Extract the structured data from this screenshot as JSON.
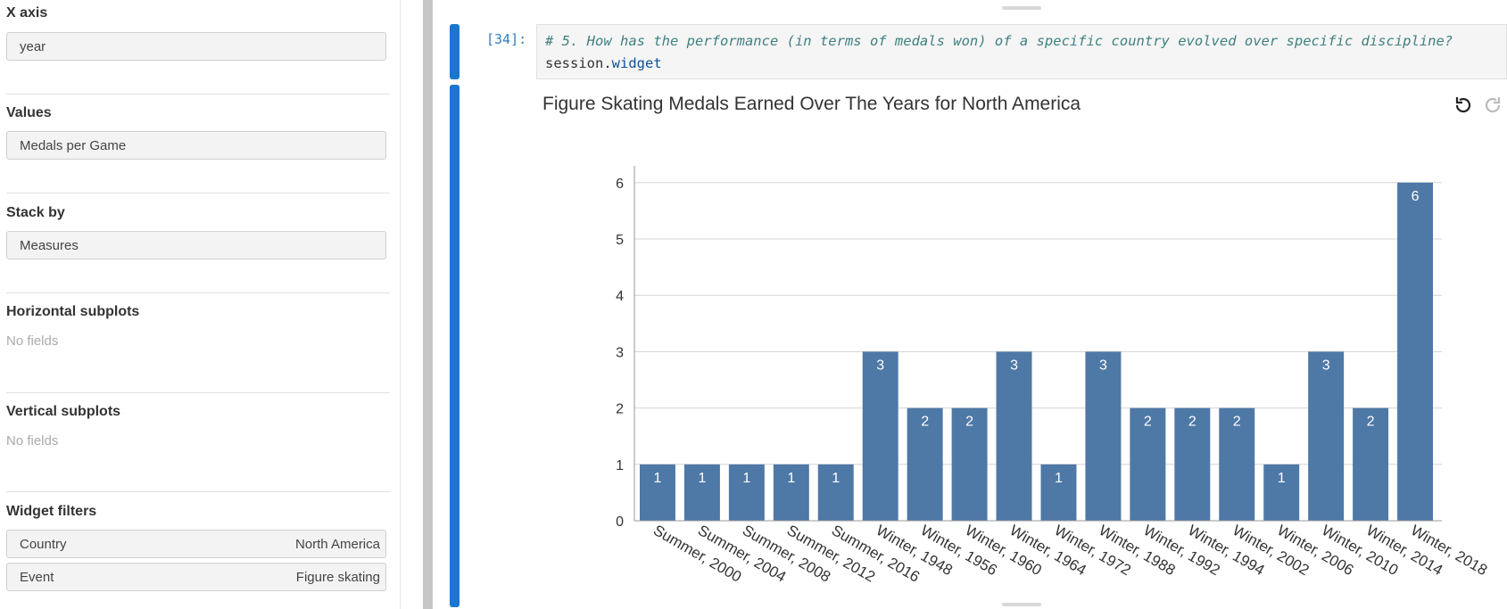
{
  "left_panel": {
    "x_axis": {
      "label": "X axis",
      "value": "year"
    },
    "values": {
      "label": "Values",
      "value": "Medals per Game"
    },
    "stack_by": {
      "label": "Stack by",
      "value": "Measures"
    },
    "horizontal_subplots": {
      "label": "Horizontal subplots",
      "empty": "No fields"
    },
    "vertical_subplots": {
      "label": "Vertical subplots",
      "empty": "No fields"
    },
    "widget_filters": {
      "label": "Widget filters",
      "filters": [
        {
          "name": "Country",
          "value": "North America"
        },
        {
          "name": "Event",
          "value": "Figure skating"
        }
      ]
    }
  },
  "notebook": {
    "cell": {
      "prompt": "[34]:",
      "comment_line": "# 5. How has the performance (in terms of medals won) of a specific country evolved over specific discipline?",
      "code_object": "session.",
      "code_attr": "widget"
    },
    "controls": {
      "icons": [
        "undo-icon",
        "redo-icon"
      ]
    }
  },
  "colors": {
    "bar": "#4e78a6",
    "accent": "#1976d2"
  },
  "chart_data": {
    "type": "bar",
    "title": "Figure Skating Medals Earned Over The Years for North America",
    "xlabel": "",
    "ylabel": "",
    "categories": [
      "Summer, 2000",
      "Summer, 2004",
      "Summer, 2008",
      "Summer, 2012",
      "Summer, 2016",
      "Winter, 1948",
      "Winter, 1956",
      "Winter, 1960",
      "Winter, 1964",
      "Winter, 1972",
      "Winter, 1988",
      "Winter, 1992",
      "Winter, 1994",
      "Winter, 2002",
      "Winter, 2006",
      "Winter, 2010",
      "Winter, 2014",
      "Winter, 2018"
    ],
    "values": [
      1,
      1,
      1,
      1,
      1,
      3,
      2,
      2,
      3,
      1,
      3,
      2,
      2,
      2,
      1,
      3,
      2,
      6
    ],
    "ylim": [
      0,
      6.3
    ],
    "yticks": [
      0,
      1,
      2,
      3,
      4,
      5,
      6
    ],
    "data_labels": true,
    "grid": true
  }
}
